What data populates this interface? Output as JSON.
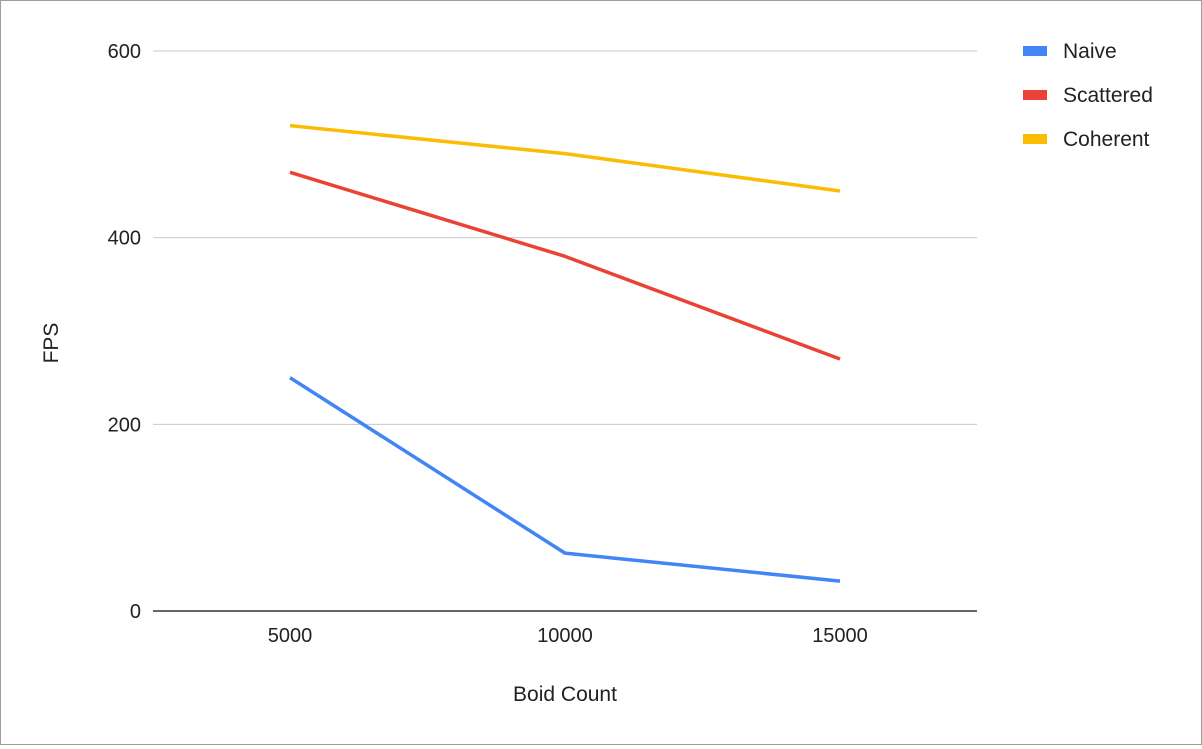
{
  "chart_data": {
    "type": "line",
    "x": [
      5000,
      10000,
      15000
    ],
    "series": [
      {
        "name": "Naive",
        "values": [
          250,
          62,
          32
        ],
        "color": "#4285f4"
      },
      {
        "name": "Scattered",
        "values": [
          470,
          380,
          270
        ],
        "color": "#ea4335"
      },
      {
        "name": "Coherent",
        "values": [
          520,
          490,
          450
        ],
        "color": "#fbbc04"
      }
    ],
    "xlabel": "Boid Count",
    "ylabel": "FPS",
    "ylim": [
      0,
      600
    ],
    "y_ticks": [
      "0",
      "200",
      "400",
      "600"
    ],
    "x_ticks": [
      "5000",
      "10000",
      "15000"
    ],
    "grid": true,
    "legend_position": "right"
  }
}
